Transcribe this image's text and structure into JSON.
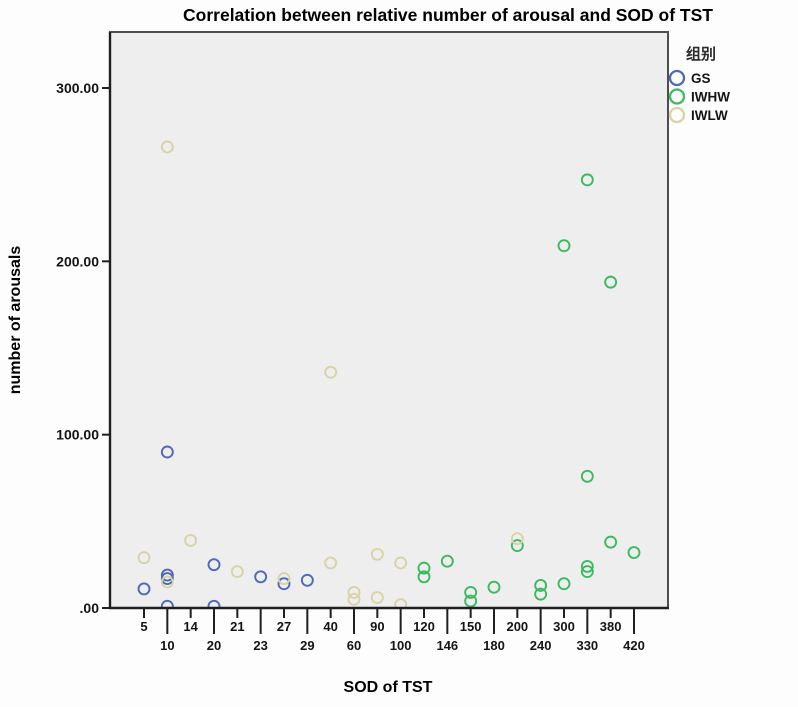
{
  "chart_data": {
    "type": "scatter",
    "title": "Correlation between relative number of arousal and SOD of TST",
    "xlabel": "SOD of TST",
    "ylabel": "number of arousals",
    "x_axis_type": "categorical-equal-spacing",
    "x_categories": [
      5,
      10,
      14,
      20,
      21,
      23,
      27,
      29,
      40,
      60,
      90,
      100,
      120,
      146,
      150,
      180,
      200,
      240,
      300,
      330,
      380,
      420
    ],
    "y_ticks": [
      {
        "label": ".00",
        "value": 0
      },
      {
        "label": "100.00",
        "value": 100
      },
      {
        "label": "200.00",
        "value": 200
      },
      {
        "label": "300.00",
        "value": 300
      }
    ],
    "ylim": [
      0,
      332
    ],
    "grid": "off",
    "plot_background": "#eeeeef",
    "legend": {
      "title": "组别",
      "position": "right",
      "entries": [
        {
          "label": "GS",
          "color": "#4f68b8"
        },
        {
          "label": "IWHW",
          "color": "#3bba60"
        },
        {
          "label": "IWLW",
          "color": "#d9d3a4"
        }
      ]
    },
    "series": [
      {
        "name": "GS",
        "color": "#4f68b8",
        "marker": "open-circle",
        "points": [
          [
            5,
            11
          ],
          [
            10,
            90
          ],
          [
            10,
            19
          ],
          [
            10,
            17
          ],
          [
            10,
            1
          ],
          [
            20,
            25
          ],
          [
            20,
            1
          ],
          [
            23,
            18
          ],
          [
            27,
            14
          ],
          [
            29,
            16
          ]
        ]
      },
      {
        "name": "IWHW",
        "color": "#3bba60",
        "marker": "open-circle",
        "points": [
          [
            120,
            23
          ],
          [
            120,
            18
          ],
          [
            146,
            27
          ],
          [
            150,
            9
          ],
          [
            150,
            4
          ],
          [
            180,
            12
          ],
          [
            200,
            36
          ],
          [
            240,
            13
          ],
          [
            240,
            8
          ],
          [
            300,
            209
          ],
          [
            300,
            14
          ],
          [
            330,
            247
          ],
          [
            330,
            76
          ],
          [
            330,
            24
          ],
          [
            330,
            21
          ],
          [
            380,
            188
          ],
          [
            380,
            38
          ],
          [
            420,
            32
          ]
        ]
      },
      {
        "name": "IWLW",
        "color": "#d9d3a4",
        "marker": "open-circle",
        "points": [
          [
            5,
            29
          ],
          [
            10,
            266
          ],
          [
            10,
            15
          ],
          [
            14,
            39
          ],
          [
            21,
            21
          ],
          [
            27,
            17
          ],
          [
            40,
            136
          ],
          [
            40,
            26
          ],
          [
            60,
            9
          ],
          [
            60,
            5
          ],
          [
            90,
            31
          ],
          [
            90,
            6
          ],
          [
            100,
            26
          ],
          [
            100,
            2
          ],
          [
            200,
            40
          ]
        ]
      }
    ]
  }
}
